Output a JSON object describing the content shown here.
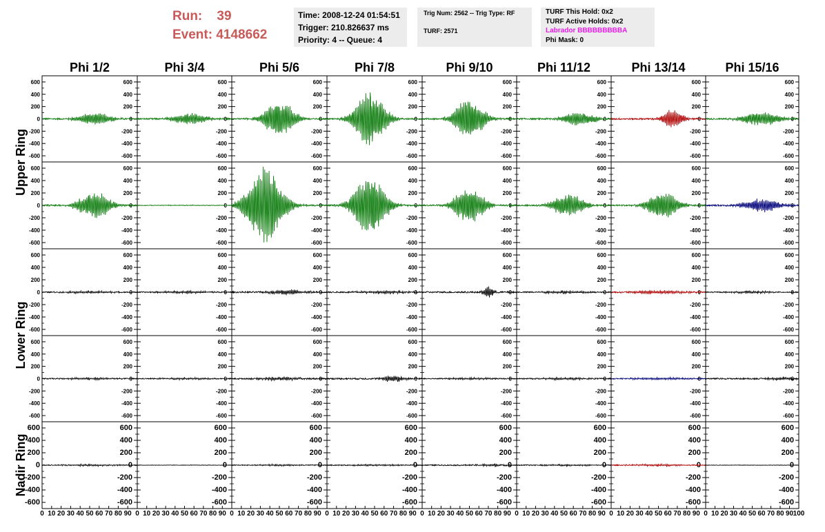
{
  "header": {
    "run_label": "Run:",
    "run_value": "39",
    "event_label": "Event:",
    "event_value": "4148662",
    "time": "Time: 2008-12-24 01:54:51",
    "trigger": "Trigger: 210.826637 ms",
    "priority": "Priority: 4 -- Queue: 4",
    "trig_num": "Trig Num: 2562 -- Trig Type: RF",
    "turf": "TURF: 2571",
    "turf_this_hold": "TURF This Hold: 0x2",
    "turf_active_holds": "TURF Active Holds: 0x2",
    "labrador": "Labrador BBBBBBBBBA",
    "phi_mask": "Phi Mask: 0"
  },
  "chart_data": {
    "type": "line",
    "columns": [
      "Phi 1/2",
      "Phi 3/4",
      "Phi 5/6",
      "Phi 7/8",
      "Phi 9/10",
      "Phi 11/12",
      "Phi 13/14",
      "Phi 15/16"
    ],
    "ring_labels": [
      "Upper Ring",
      "Lower Ring",
      "Nadir Ring"
    ],
    "ylim": [
      -700,
      700
    ],
    "yticks": [
      -600,
      -400,
      -200,
      0,
      200,
      400,
      600
    ],
    "xlim": [
      0,
      100
    ],
    "xticks": [
      0,
      10,
      20,
      30,
      40,
      50,
      60,
      70,
      80,
      90,
      100
    ],
    "colors": {
      "green": "#0a7a0a",
      "red": "#b00000",
      "blue": "#00007a",
      "black": "#000000"
    },
    "rows": [
      {
        "panels": [
          {
            "color": "green",
            "amp": 110,
            "center": 55,
            "width": 18
          },
          {
            "color": "green",
            "amp": 90,
            "center": 55,
            "width": 20
          },
          {
            "color": "green",
            "amp": 300,
            "center": 50,
            "width": 17
          },
          {
            "color": "green",
            "amp": 480,
            "center": 45,
            "width": 17
          },
          {
            "color": "green",
            "amp": 360,
            "center": 50,
            "width": 16
          },
          {
            "color": "green",
            "amp": 120,
            "center": 65,
            "width": 18
          },
          {
            "color": "red",
            "amp": 150,
            "center": 65,
            "width": 12
          },
          {
            "color": "green",
            "amp": 110,
            "center": 60,
            "width": 22
          }
        ]
      },
      {
        "panels": [
          {
            "color": "green",
            "amp": 220,
            "center": 55,
            "width": 18
          },
          {
            "color": "green",
            "amp": 5,
            "center": 50,
            "width": 30
          },
          {
            "color": "green",
            "amp": 650,
            "center": 35,
            "width": 20
          },
          {
            "color": "green",
            "amp": 500,
            "center": 45,
            "width": 18
          },
          {
            "color": "green",
            "amp": 300,
            "center": 50,
            "width": 17
          },
          {
            "color": "green",
            "amp": 190,
            "center": 55,
            "width": 18
          },
          {
            "color": "green",
            "amp": 230,
            "center": 55,
            "width": 17
          },
          {
            "color": "blue",
            "amp": 110,
            "center": 60,
            "width": 20
          }
        ]
      },
      {
        "panels": [
          {
            "color": "black",
            "amp": 18,
            "center": 50,
            "width": 30
          },
          {
            "color": "black",
            "amp": 18,
            "center": 50,
            "width": 30
          },
          {
            "color": "black",
            "amp": 35,
            "center": 60,
            "width": 20
          },
          {
            "color": "black",
            "amp": 25,
            "center": 60,
            "width": 25
          },
          {
            "color": "black",
            "amp": 90,
            "center": 70,
            "width": 6
          },
          {
            "color": "black",
            "amp": 20,
            "center": 50,
            "width": 30
          },
          {
            "color": "red",
            "amp": 28,
            "center": 50,
            "width": 30
          },
          {
            "color": "black",
            "amp": 15,
            "center": 50,
            "width": 30
          }
        ]
      },
      {
        "panels": [
          {
            "color": "black",
            "amp": 15,
            "center": 50,
            "width": 30
          },
          {
            "color": "black",
            "amp": 15,
            "center": 50,
            "width": 30
          },
          {
            "color": "black",
            "amp": 25,
            "center": 50,
            "width": 25
          },
          {
            "color": "black",
            "amp": 55,
            "center": 70,
            "width": 12
          },
          {
            "color": "black",
            "amp": 15,
            "center": 50,
            "width": 30
          },
          {
            "color": "black",
            "amp": 18,
            "center": 50,
            "width": 30
          },
          {
            "color": "blue",
            "amp": 18,
            "center": 50,
            "width": 30
          },
          {
            "color": "black",
            "amp": 25,
            "center": 80,
            "width": 15
          }
        ]
      },
      {
        "panels": [
          {
            "color": "black",
            "amp": 14,
            "center": 50,
            "width": 30
          },
          {
            "color": "black",
            "amp": 1,
            "center": 50,
            "width": 30
          },
          {
            "color": "black",
            "amp": 12,
            "center": 50,
            "width": 30
          },
          {
            "color": "black",
            "amp": 12,
            "center": 50,
            "width": 30
          },
          {
            "color": "black",
            "amp": 20,
            "center": 75,
            "width": 15
          },
          {
            "color": "black",
            "amp": 12,
            "center": 50,
            "width": 30
          },
          {
            "color": "red",
            "amp": 15,
            "center": 50,
            "width": 30
          },
          {
            "color": "black",
            "amp": 1,
            "center": 50,
            "width": 30
          }
        ]
      }
    ]
  }
}
